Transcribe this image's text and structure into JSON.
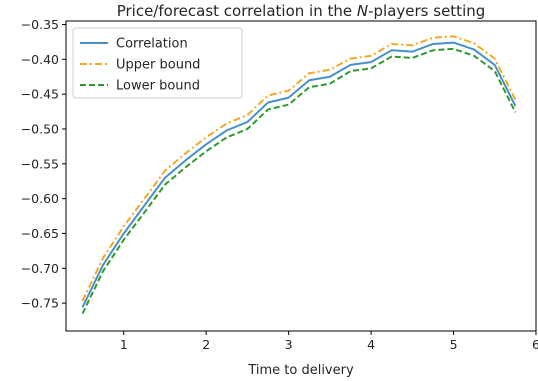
{
  "chart_data": {
    "type": "line",
    "title": "Price/forecast correlation in the N-players setting",
    "title_parts": {
      "prefix": "Price/forecast correlation in the ",
      "italic": "N",
      "suffix": "-players setting"
    },
    "xlabel": "Time to delivery",
    "ylabel": "",
    "xlim": [
      0.3,
      6.0
    ],
    "ylim": [
      -0.79,
      -0.345
    ],
    "x_ticks": [
      1,
      2,
      3,
      4,
      5,
      6
    ],
    "x_tick_labels": [
      "1",
      "2",
      "3",
      "4",
      "5",
      "6"
    ],
    "y_ticks": [
      -0.75,
      -0.7,
      -0.65,
      -0.6,
      -0.55,
      -0.5,
      -0.45,
      -0.4,
      -0.35
    ],
    "y_tick_labels": [
      "−0.75",
      "−0.70",
      "−0.65",
      "−0.60",
      "−0.55",
      "−0.50",
      "−0.45",
      "−0.40",
      "−0.35"
    ],
    "grid": false,
    "legend_position": "top-left",
    "x": [
      0.5,
      0.75,
      1.0,
      1.25,
      1.5,
      1.75,
      2.0,
      2.25,
      2.5,
      2.75,
      3.0,
      3.25,
      3.5,
      3.75,
      4.0,
      4.25,
      4.5,
      4.75,
      5.0,
      5.25,
      5.5,
      5.75
    ],
    "series": [
      {
        "name": "Correlation",
        "color": "#4a90c8",
        "dash": "solid",
        "values": [
          -0.756,
          -0.695,
          -0.65,
          -0.61,
          -0.57,
          -0.545,
          -0.522,
          -0.502,
          -0.49,
          -0.462,
          -0.455,
          -0.43,
          -0.425,
          -0.408,
          -0.404,
          -0.387,
          -0.389,
          -0.378,
          -0.376,
          -0.386,
          -0.408,
          -0.467
        ]
      },
      {
        "name": "Upper bound",
        "color": "#f5a623",
        "dash": "dashdot",
        "values": [
          -0.747,
          -0.685,
          -0.64,
          -0.6,
          -0.56,
          -0.535,
          -0.512,
          -0.492,
          -0.48,
          -0.452,
          -0.445,
          -0.42,
          -0.415,
          -0.399,
          -0.395,
          -0.378,
          -0.38,
          -0.369,
          -0.367,
          -0.377,
          -0.399,
          -0.458
        ]
      },
      {
        "name": "Lower bound",
        "color": "#2e9a2e",
        "dash": "dashed",
        "values": [
          -0.765,
          -0.704,
          -0.659,
          -0.62,
          -0.58,
          -0.555,
          -0.532,
          -0.512,
          -0.5,
          -0.472,
          -0.465,
          -0.44,
          -0.435,
          -0.417,
          -0.413,
          -0.396,
          -0.398,
          -0.387,
          -0.385,
          -0.395,
          -0.417,
          -0.476
        ]
      }
    ]
  }
}
